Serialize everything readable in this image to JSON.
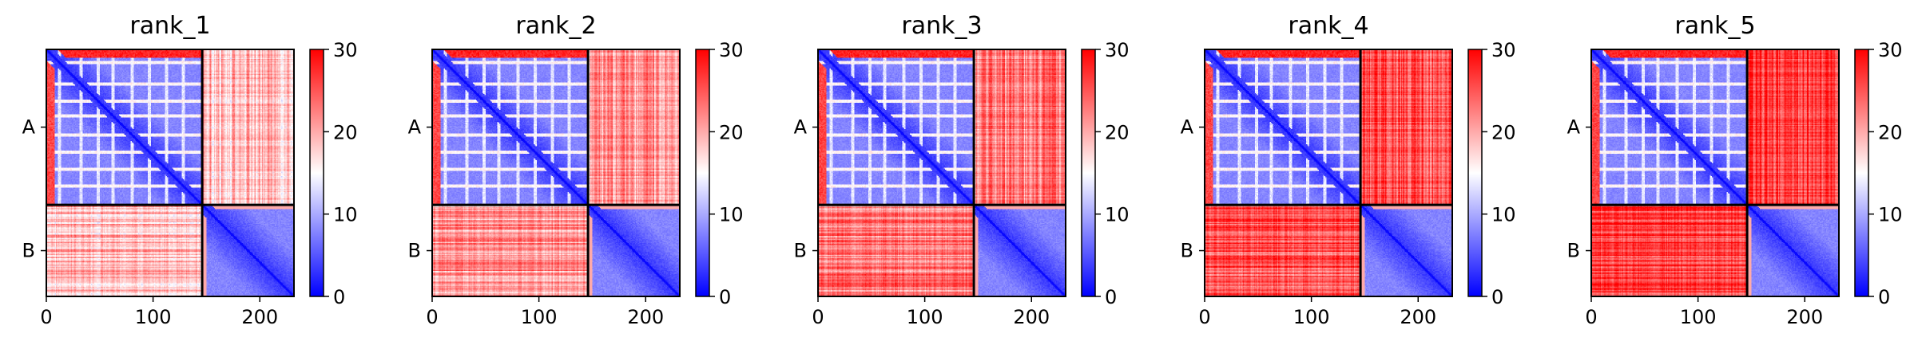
{
  "chart_data": [
    {
      "type": "heatmap",
      "title": "rank_1",
      "xticks": [
        0,
        100,
        200
      ],
      "yticks": [
        "A",
        "B"
      ],
      "colorbar": {
        "ticks": [
          0,
          10,
          20,
          30
        ],
        "range": [
          0,
          30
        ],
        "colors": [
          "#0000ff",
          "#ffffff",
          "#ff0000"
        ]
      },
      "xlim": [
        0,
        232
      ],
      "chain_break": 146,
      "offdiag_mean": 19,
      "blocks": {
        "A-A": "low",
        "A-B": "high",
        "B-A": "high",
        "B-B": "low"
      }
    },
    {
      "type": "heatmap",
      "title": "rank_2",
      "xticks": [
        0,
        100,
        200
      ],
      "yticks": [
        "A",
        "B"
      ],
      "colorbar": {
        "ticks": [
          0,
          10,
          20,
          30
        ],
        "range": [
          0,
          30
        ],
        "colors": [
          "#0000ff",
          "#ffffff",
          "#ff0000"
        ]
      },
      "xlim": [
        0,
        232
      ],
      "chain_break": 146,
      "offdiag_mean": 21,
      "blocks": {
        "A-A": "low",
        "A-B": "high",
        "B-A": "high",
        "B-B": "low"
      }
    },
    {
      "type": "heatmap",
      "title": "rank_3",
      "xticks": [
        0,
        100,
        200
      ],
      "yticks": [
        "A",
        "B"
      ],
      "colorbar": {
        "ticks": [
          0,
          10,
          20,
          30
        ],
        "range": [
          0,
          30
        ],
        "colors": [
          "#0000ff",
          "#ffffff",
          "#ff0000"
        ]
      },
      "xlim": [
        0,
        232
      ],
      "chain_break": 146,
      "offdiag_mean": 23,
      "blocks": {
        "A-A": "low",
        "A-B": "high",
        "B-A": "high",
        "B-B": "low"
      }
    },
    {
      "type": "heatmap",
      "title": "rank_4",
      "xticks": [
        0,
        100,
        200
      ],
      "yticks": [
        "A",
        "B"
      ],
      "colorbar": {
        "ticks": [
          0,
          10,
          20,
          30
        ],
        "range": [
          0,
          30
        ],
        "colors": [
          "#0000ff",
          "#ffffff",
          "#ff0000"
        ]
      },
      "xlim": [
        0,
        232
      ],
      "chain_break": 146,
      "offdiag_mean": 25,
      "blocks": {
        "A-A": "low",
        "A-B": "high",
        "B-A": "high",
        "B-B": "low"
      }
    },
    {
      "type": "heatmap",
      "title": "rank_5",
      "xticks": [
        0,
        100,
        200
      ],
      "yticks": [
        "A",
        "B"
      ],
      "colorbar": {
        "ticks": [
          0,
          10,
          20,
          30
        ],
        "range": [
          0,
          30
        ],
        "colors": [
          "#0000ff",
          "#ffffff",
          "#ff0000"
        ]
      },
      "xlim": [
        0,
        232
      ],
      "chain_break": 146,
      "offdiag_mean": 27,
      "blocks": {
        "A-A": "low",
        "A-B": "high",
        "B-A": "high",
        "B-B": "low"
      }
    }
  ]
}
